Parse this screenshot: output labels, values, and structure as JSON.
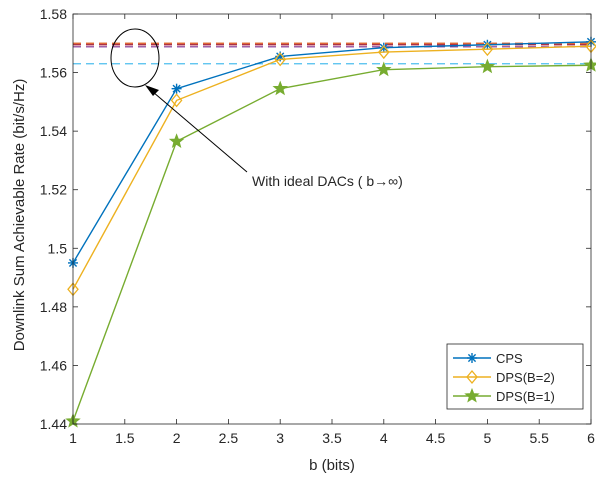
{
  "chart_data": {
    "type": "line",
    "title": "",
    "xlabel": "b (bits)",
    "ylabel": "Downlink Sum Achievable Rate (bit/s/Hz)",
    "xlim": [
      1,
      6
    ],
    "ylim": [
      1.44,
      1.58
    ],
    "x_ticks": [
      "1",
      "1.5",
      "2",
      "2.5",
      "3",
      "3.5",
      "4",
      "4.5",
      "5",
      "5.5",
      "6"
    ],
    "y_ticks": [
      "1.44",
      "1.46",
      "1.48",
      "1.5",
      "1.52",
      "1.54",
      "1.56",
      "1.58"
    ],
    "grid": false,
    "legend_position": "bottom-right",
    "x": [
      1,
      2,
      3,
      4,
      5,
      6
    ],
    "series": [
      {
        "name": "CPS",
        "color": "#0072BD",
        "marker": "asterisk",
        "values": [
          1.495,
          1.5545,
          1.5655,
          1.5685,
          1.5695,
          1.5705
        ]
      },
      {
        "name": "DPS(B=2)",
        "color": "#EDB120",
        "marker": "diamond",
        "values": [
          1.486,
          1.5505,
          1.5645,
          1.567,
          1.568,
          1.569
        ]
      },
      {
        "name": "DPS(B=1)",
        "color": "#77AC30",
        "marker": "star",
        "values": [
          1.441,
          1.5365,
          1.5545,
          1.561,
          1.562,
          1.5625
        ]
      }
    ],
    "reference_lines": [
      {
        "color": "#D95319",
        "value": 1.57
      },
      {
        "color": "#A2142F",
        "value": 1.5695
      },
      {
        "color": "#7E2F8E",
        "value": 1.5688
      },
      {
        "color": "#4DBEEE",
        "value": 1.563
      }
    ],
    "annotation": {
      "text": "With ideal DACs ( b→∞)"
    }
  }
}
